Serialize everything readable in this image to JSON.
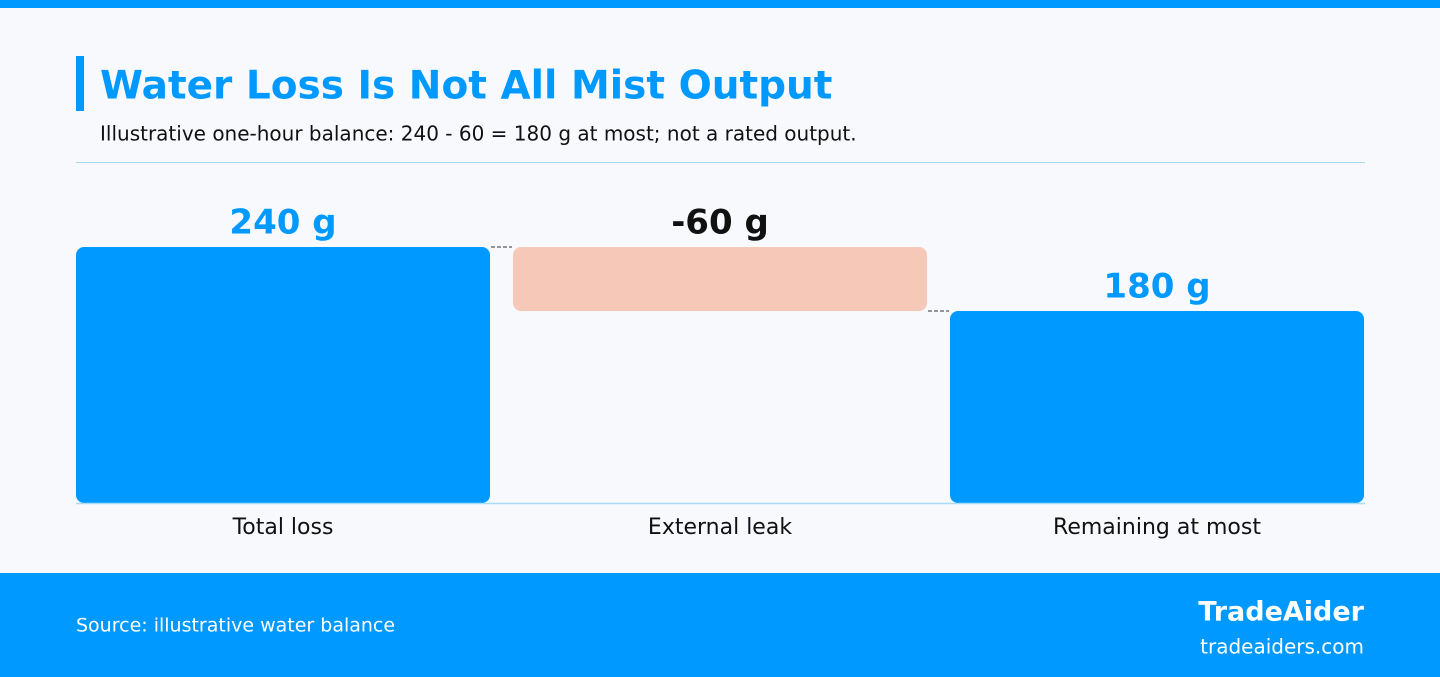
{
  "chart_data": {
    "type": "waterfall",
    "title": "Water Loss Is Not All Mist Output",
    "subtitle": "Illustrative one-hour balance: 240 - 60 = 180 g at most; not a rated output.",
    "categories": [
      "Total loss",
      "External leak",
      "Remaining at most"
    ],
    "values": [
      240,
      -60,
      180
    ],
    "value_labels": [
      "240 g",
      "-60 g",
      "180 g"
    ],
    "measures": [
      "absolute",
      "relative",
      "total"
    ],
    "color": "#0099ff",
    "negative_color": "#f5c8b8"
  },
  "footer": {
    "source": "Source: illustrative water balance",
    "brand": "TradeAider",
    "url": "tradeaiders.com"
  }
}
